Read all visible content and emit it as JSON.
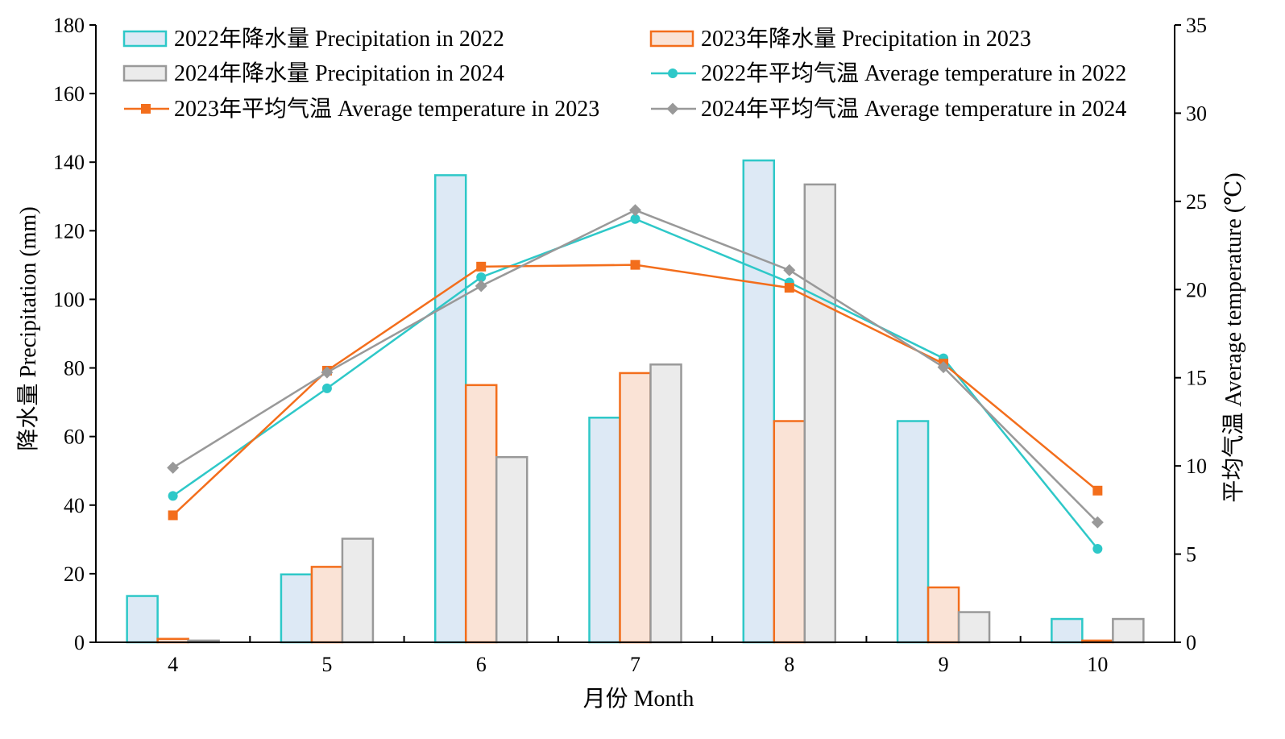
{
  "chart_data": {
    "type": "bar+line",
    "categories": [
      "4",
      "5",
      "6",
      "7",
      "8",
      "9",
      "10"
    ],
    "xlabel": "月份 Month",
    "ylabel_left": "降水量 Precipitation (mm)",
    "ylabel_right": "平均气温 Average temperature (℃)",
    "ylim_left": [
      0,
      180
    ],
    "yticks_left": [
      "0",
      "20",
      "40",
      "60",
      "80",
      "100",
      "120",
      "140",
      "160",
      "180"
    ],
    "ylim_right": [
      0,
      35
    ],
    "yticks_right": [
      "0",
      "5",
      "10",
      "15",
      "20",
      "25",
      "30",
      "35"
    ],
    "legend_placement": "top",
    "bar_series": [
      {
        "name": "2022年降水量 Precipitation in 2022",
        "stroke": "#2ec8c8",
        "fill": "#dde9f5",
        "values": [
          13.5,
          19.8,
          136.2,
          65.5,
          140.5,
          64.5,
          6.8
        ]
      },
      {
        "name": "2023年降水量 Precipitation in 2023",
        "stroke": "#f36e1c",
        "fill": "#fae3d6",
        "values": [
          1.0,
          22.0,
          75.0,
          78.5,
          64.5,
          16.0,
          0.5
        ]
      },
      {
        "name": "2024年降水量 Precipitation in 2024",
        "stroke": "#999999",
        "fill": "#ebebeb",
        "values": [
          0.5,
          30.2,
          54.0,
          81.0,
          133.5,
          8.8,
          6.8
        ]
      }
    ],
    "line_series": [
      {
        "name": "2022年平均气温 Average temperature in 2022",
        "color": "#2ec8c8",
        "marker": "circle",
        "values": [
          8.3,
          14.4,
          20.7,
          24.0,
          20.4,
          16.1,
          5.3
        ]
      },
      {
        "name": "2023年平均气温  Average temperature in 2023",
        "color": "#f36e1c",
        "marker": "square",
        "values": [
          7.2,
          15.4,
          21.3,
          21.4,
          20.1,
          15.8,
          8.6
        ]
      },
      {
        "name": "2024年平均气温  Average temperature in 2024",
        "color": "#999999",
        "marker": "diamond",
        "values": [
          9.9,
          15.3,
          20.2,
          24.5,
          21.1,
          15.6,
          6.8
        ]
      }
    ]
  }
}
